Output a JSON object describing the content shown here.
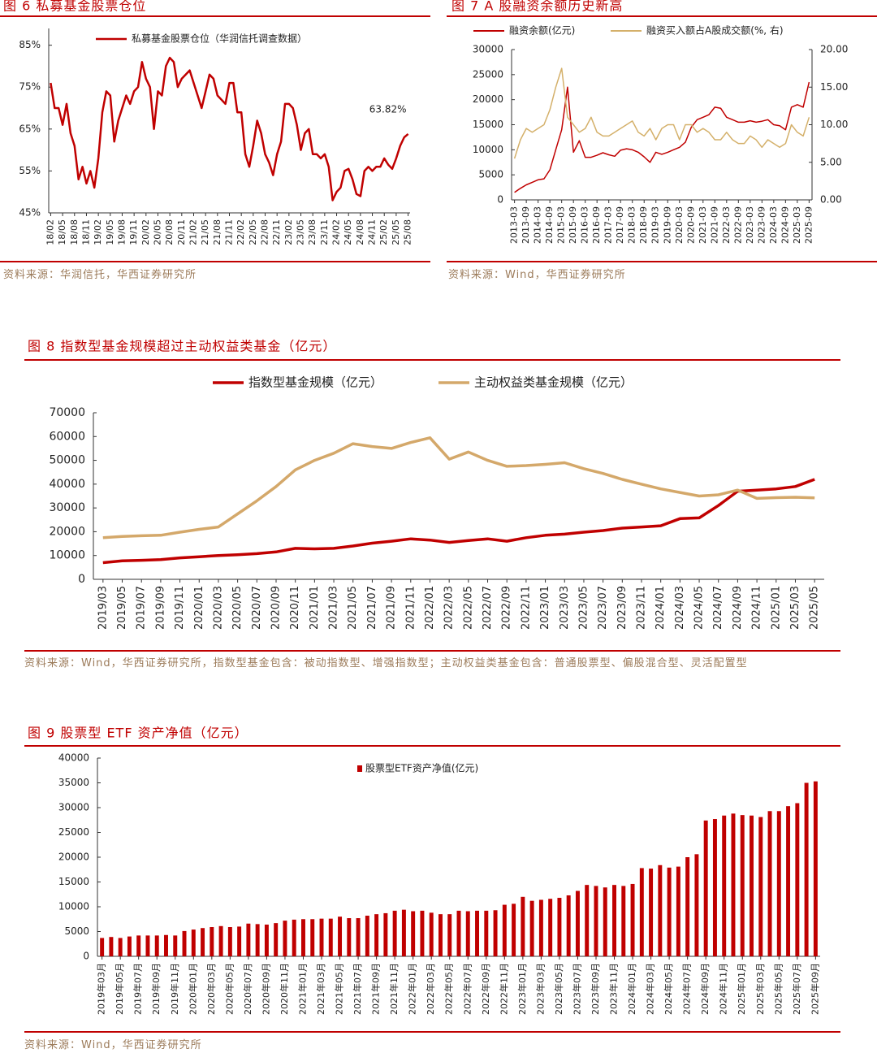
{
  "chart_data": [
    {
      "type": "line",
      "title": "图 6 私募基金股票仓位",
      "source": "资料来源：华润信托，华西证券研究所",
      "categories": [
        "18/02",
        null,
        null,
        "18/05",
        null,
        null,
        "18/08",
        null,
        null,
        "18/11",
        null,
        null,
        "19/02",
        null,
        null,
        "19/05",
        null,
        null,
        "19/08",
        null,
        null,
        "19/11",
        null,
        null,
        "20/02",
        null,
        null,
        "20/05",
        null,
        null,
        "20/08",
        null,
        null,
        "20/11",
        null,
        null,
        "21/02",
        null,
        null,
        "21/05",
        null,
        null,
        "21/08",
        null,
        null,
        "21/11",
        null,
        null,
        "22/02",
        null,
        null,
        "22/05",
        null,
        null,
        "22/08",
        null,
        null,
        "22/11",
        null,
        null,
        "23/02",
        null,
        null,
        "23/05",
        null,
        null,
        "23/08",
        null,
        null,
        "23/11",
        null,
        null,
        "24/02",
        null,
        null,
        "24/05",
        null,
        null,
        "24/08",
        null,
        null,
        "24/11",
        null,
        null,
        "25/02",
        null,
        null,
        "25/05",
        null,
        null,
        "25/08"
      ],
      "series": [
        {
          "name": "私募基金股票仓位（华润信托调查数据）",
          "color": "#c00000",
          "values": [
            76,
            70,
            70,
            66,
            71,
            64,
            61,
            53,
            56,
            52,
            55,
            51,
            58,
            69,
            74,
            73,
            62,
            67,
            70,
            73,
            71,
            74,
            75,
            81,
            77,
            75,
            65,
            74,
            73,
            80,
            82,
            81,
            75,
            77,
            78,
            79,
            76,
            73,
            70,
            74,
            78,
            77,
            73,
            72,
            71,
            76,
            76,
            69,
            69,
            59,
            56,
            61,
            67,
            64,
            59,
            57,
            54,
            59,
            62,
            71,
            71,
            70,
            66,
            60,
            64,
            65,
            59,
            59,
            58,
            59,
            56,
            48,
            50,
            51,
            55,
            55.5,
            53,
            49.5,
            49,
            55,
            56,
            55,
            56,
            56,
            58,
            56.5,
            55.5,
            58,
            61,
            63,
            63.82
          ],
          "value_labels": [
            null,
            null,
            null,
            null,
            null,
            null,
            null,
            null,
            null,
            null,
            null,
            null,
            null,
            null,
            null,
            null,
            null,
            null,
            null,
            null,
            null,
            null,
            null,
            null,
            null,
            null,
            null,
            null,
            null,
            null,
            null,
            null,
            null,
            null,
            null,
            null,
            null,
            null,
            null,
            null,
            null,
            null,
            null,
            null,
            null,
            null,
            null,
            null,
            null,
            null,
            null,
            null,
            null,
            null,
            null,
            null,
            null,
            null,
            null,
            null,
            null,
            null,
            null,
            null,
            null,
            null,
            null,
            null,
            null,
            null,
            null,
            null,
            null,
            null,
            null,
            null,
            null,
            null,
            null,
            null,
            null,
            null,
            null,
            null,
            null,
            null,
            null,
            null,
            null,
            null,
            "63.82%"
          ]
        }
      ],
      "ylim": [
        45,
        89
      ],
      "yticks": [
        {
          "value": 45,
          "label": "45%"
        },
        {
          "value": 55,
          "label": "55%"
        },
        {
          "value": 65,
          "label": "65%"
        },
        {
          "value": 75,
          "label": "75%"
        },
        {
          "value": 85,
          "label": "85%"
        }
      ],
      "legend": "top"
    },
    {
      "type": "line",
      "title": "图 7 A 股融资余额历史新高",
      "source": "资料来源：Wind，华西证券研究所",
      "categories": [
        "2013-03",
        null,
        "2013-09",
        null,
        "2014-03",
        null,
        "2014-09",
        null,
        "2015-03",
        null,
        "2015-09",
        null,
        "2016-03",
        null,
        "2016-09",
        null,
        "2017-03",
        null,
        "2017-09",
        null,
        "2018-03",
        null,
        "2018-09",
        null,
        "2019-03",
        null,
        "2019-09",
        null,
        "2020-03",
        null,
        "2020-09",
        null,
        "2021-03",
        null,
        "2021-09",
        null,
        "2022-03",
        null,
        "2022-09",
        null,
        "2023-03",
        null,
        "2023-09",
        null,
        "2024-03",
        null,
        "2024-09",
        null,
        "2025-03",
        null,
        "2025-09"
      ],
      "series": [
        {
          "name": "融资余额(亿元)",
          "color": "#c00000",
          "values": [
            1500,
            2300,
            3000,
            3500,
            4000,
            4200,
            6000,
            10000,
            14000,
            22500,
            9500,
            11800,
            8500,
            8500,
            8900,
            9400,
            9000,
            8700,
            9900,
            10200,
            10000,
            9500,
            8600,
            7500,
            9500,
            9100,
            9500,
            10000,
            10500,
            11500,
            14500,
            16000,
            16500,
            17000,
            18500,
            18300,
            16500,
            16000,
            15500,
            15500,
            15800,
            15500,
            15700,
            16000,
            15000,
            14800,
            14000,
            18500,
            19000,
            18500,
            23500
          ]
        },
        {
          "name": "融资买入额占A股成交额(%, 右)",
          "color": "#d4b06a",
          "axis": "y2",
          "values": [
            5.5,
            8,
            9.5,
            9,
            9.5,
            10,
            12,
            15,
            17.5,
            11,
            10,
            9,
            9.5,
            11,
            9,
            8.5,
            8.5,
            9,
            9.5,
            10,
            10.5,
            9,
            8.5,
            9.5,
            8,
            9.5,
            10,
            10,
            8,
            10,
            10,
            9,
            9.5,
            9,
            8,
            8,
            9,
            8,
            7.5,
            7.5,
            8.5,
            8,
            7,
            8,
            7.5,
            7,
            7.5,
            10,
            9,
            8.5,
            11
          ]
        }
      ],
      "ylim": [
        0,
        30000
      ],
      "yticks": [
        0,
        5000,
        10000,
        15000,
        20000,
        25000,
        30000
      ],
      "y2lim": [
        0,
        20
      ],
      "y2ticks": [
        {
          "value": 0,
          "label": "0.00"
        },
        {
          "value": 5,
          "label": "5.00"
        },
        {
          "value": 10,
          "label": "10.00"
        },
        {
          "value": 15,
          "label": "15.00"
        },
        {
          "value": 20,
          "label": "20.00"
        }
      ],
      "legend": "top"
    },
    {
      "type": "line",
      "title": "图 8 指数型基金规模超过主动权益类基金（亿元）",
      "source": "资料来源：Wind，华西证券研究所，指数型基金包含：被动指数型、增强指数型；主动权益类基金包含：普通股票型、偏股混合型、灵活配置型",
      "categories": [
        "2019/03",
        "2019/05",
        "2019/07",
        "2019/09",
        "2019/11",
        "2020/01",
        "2020/03",
        "2020/05",
        "2020/07",
        "2020/09",
        "2020/11",
        "2021/01",
        "2021/03",
        "2021/05",
        "2021/07",
        "2021/09",
        "2021/11",
        "2022/01",
        "2022/03",
        "2022/05",
        "2022/07",
        "2022/09",
        "2022/11",
        "2023/01",
        "2023/03",
        "2023/05",
        "2023/07",
        "2023/09",
        "2023/11",
        "2024/01",
        "2024/03",
        "2024/05",
        "2024/07",
        "2024/09",
        "2024/11",
        "2025/01",
        "2025/03",
        "2025/05"
      ],
      "series": [
        {
          "name": "指数型基金规模（亿元）",
          "color": "#c00000",
          "values": [
            7000,
            7800,
            8000,
            8300,
            9000,
            9500,
            10000,
            10300,
            10800,
            11500,
            13000,
            12800,
            13000,
            14000,
            15200,
            16000,
            17000,
            16500,
            15500,
            16300,
            17000,
            16000,
            17500,
            18500,
            19000,
            19800,
            20500,
            21500,
            22000,
            22500,
            25500,
            25800,
            31000,
            37000,
            37500,
            38000,
            39000,
            42000
          ]
        },
        {
          "name": "主动权益类基金规模（亿元）",
          "color": "#d4a86a",
          "values": [
            17500,
            18000,
            18300,
            18500,
            19800,
            21000,
            22000,
            27500,
            33000,
            39000,
            46000,
            50000,
            53000,
            57000,
            55800,
            55000,
            57500,
            59500,
            50500,
            53500,
            50000,
            47500,
            47800,
            48300,
            49000,
            46500,
            44500,
            42000,
            40000,
            38000,
            36500,
            35000,
            35500,
            37500,
            34000,
            34300,
            34500,
            34200
          ]
        }
      ],
      "ylim": [
        0,
        70000
      ],
      "yticks": [
        0,
        10000,
        20000,
        30000,
        40000,
        50000,
        60000,
        70000
      ],
      "legend": "top"
    },
    {
      "type": "bar",
      "title": "图 9 股票型 ETF 资产净值（亿元）",
      "source": "资料来源：Wind，华西证券研究所",
      "categories": [
        "2019年03月",
        null,
        "2019年05月",
        null,
        "2019年07月",
        null,
        "2019年09月",
        null,
        "2019年11月",
        null,
        "2020年01月",
        null,
        "2020年03月",
        null,
        "2020年05月",
        null,
        "2020年07月",
        null,
        "2020年09月",
        null,
        "2020年11月",
        null,
        "2021年01月",
        null,
        "2021年03月",
        null,
        "2021年05月",
        null,
        "2021年07月",
        null,
        "2021年09月",
        null,
        "2021年11月",
        null,
        "2022年01月",
        null,
        "2022年03月",
        null,
        "2022年05月",
        null,
        "2022年07月",
        null,
        "2022年09月",
        null,
        "2022年11月",
        null,
        "2023年01月",
        null,
        "2023年03月",
        null,
        "2023年05月",
        null,
        "2023年07月",
        null,
        "2023年09月",
        null,
        "2023年11月",
        null,
        "2024年01月",
        null,
        "2024年03月",
        null,
        "2024年05月",
        null,
        "2024年07月",
        null,
        "2024年09月",
        null,
        "2024年11月",
        null,
        "2025年01月",
        null,
        "2025年03月",
        null,
        "2025年05月",
        null,
        "2025年07月",
        null,
        "2025年09月"
      ],
      "series": [
        {
          "name": "股票型ETF资产净值(亿元)",
          "color": "#c00000",
          "values": [
            3700,
            3900,
            3700,
            4000,
            4200,
            4200,
            4200,
            4300,
            4200,
            5100,
            5400,
            5700,
            5900,
            6100,
            5900,
            6000,
            6600,
            6500,
            6400,
            6700,
            7200,
            7400,
            7500,
            7500,
            7600,
            7600,
            8000,
            7700,
            7700,
            8200,
            8500,
            8700,
            9200,
            9400,
            9100,
            9200,
            8800,
            8500,
            8500,
            9200,
            9100,
            9200,
            9200,
            9300,
            10400,
            10600,
            12000,
            11200,
            11400,
            11600,
            11800,
            12300,
            13200,
            14400,
            14200,
            13900,
            14400,
            14200,
            14600,
            17800,
            17700,
            18400,
            17900,
            18100,
            20000,
            20600,
            27400,
            27700,
            28400,
            28800,
            28500,
            28400,
            28100,
            29300,
            29300,
            30300,
            30900,
            35000,
            35300
          ]
        }
      ],
      "ylim": [
        0,
        40000
      ],
      "yticks": [
        0,
        5000,
        10000,
        15000,
        20000,
        25000,
        30000,
        35000,
        40000
      ],
      "legend": "top"
    }
  ]
}
